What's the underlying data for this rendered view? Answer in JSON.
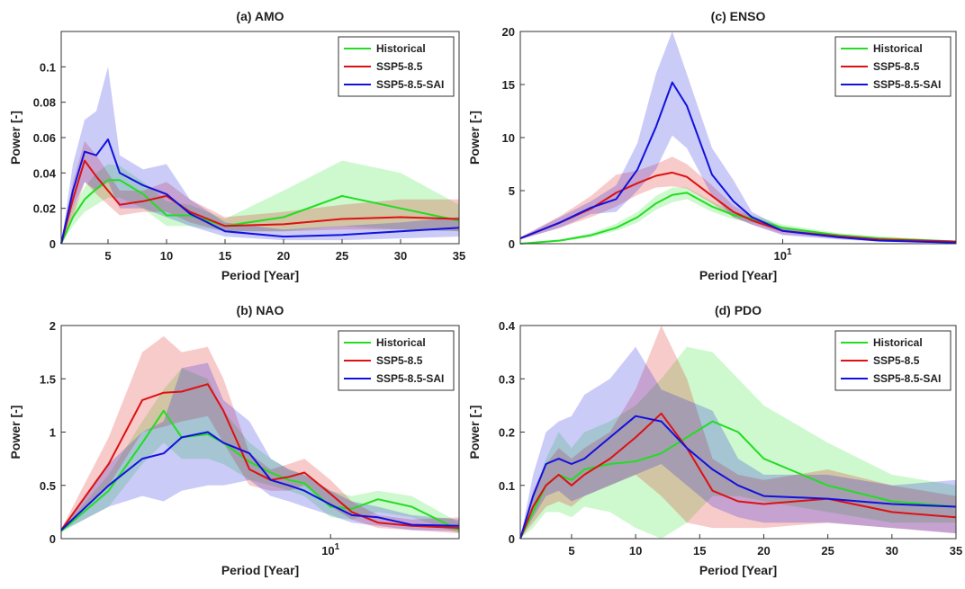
{
  "chart_data": [
    {
      "type": "line",
      "title": "(a) AMO",
      "x_label": "Period [Year]",
      "y_label": "Power [-]",
      "xscale": "linear",
      "xlim": [
        1,
        35
      ],
      "xticks": [
        5,
        10,
        15,
        20,
        25,
        30,
        35
      ],
      "ylim": [
        0,
        0.12
      ],
      "yticks": [
        0,
        0.02,
        0.04,
        0.06,
        0.08,
        0.1
      ],
      "legend": "upper right",
      "x": [
        1,
        2,
        3,
        4,
        5,
        6,
        8,
        10,
        12,
        15,
        20,
        25,
        30,
        35
      ],
      "series": [
        {
          "name": "Historical",
          "color": "#22dd22",
          "values": [
            0,
            0.015,
            0.025,
            0.031,
            0.036,
            0.036,
            0.028,
            0.016,
            0.016,
            0.01,
            0.015,
            0.027,
            0.02,
            0.013
          ],
          "upper": [
            0,
            0.02,
            0.032,
            0.04,
            0.045,
            0.044,
            0.035,
            0.024,
            0.022,
            0.014,
            0.03,
            0.047,
            0.04,
            0.022
          ],
          "lower": [
            0,
            0.01,
            0.018,
            0.022,
            0.026,
            0.026,
            0.02,
            0.01,
            0.01,
            0.007,
            0.007,
            0.01,
            0.008,
            0.007
          ]
        },
        {
          "name": "SSP5-8.5",
          "color": "#dd1111",
          "values": [
            0,
            0.025,
            0.047,
            0.038,
            0.03,
            0.022,
            0.024,
            0.027,
            0.018,
            0.01,
            0.011,
            0.014,
            0.015,
            0.014
          ],
          "upper": [
            0,
            0.035,
            0.058,
            0.05,
            0.04,
            0.03,
            0.03,
            0.035,
            0.025,
            0.015,
            0.018,
            0.022,
            0.025,
            0.025
          ],
          "lower": [
            0,
            0.015,
            0.035,
            0.028,
            0.022,
            0.016,
            0.018,
            0.018,
            0.012,
            0.007,
            0.007,
            0.008,
            0.008,
            0.007
          ]
        },
        {
          "name": "SSP5-8.5-SAI",
          "color": "#1111dd",
          "values": [
            0,
            0.03,
            0.052,
            0.05,
            0.059,
            0.04,
            0.033,
            0.028,
            0.017,
            0.007,
            0.004,
            0.005,
            0.007,
            0.009
          ],
          "upper": [
            0,
            0.045,
            0.07,
            0.075,
            0.1,
            0.05,
            0.042,
            0.045,
            0.025,
            0.012,
            0.008,
            0.01,
            0.012,
            0.015
          ],
          "lower": [
            0,
            0.02,
            0.035,
            0.03,
            0.035,
            0.02,
            0.02,
            0.015,
            0.01,
            0.004,
            0.002,
            0.002,
            0.003,
            0.004
          ]
        }
      ]
    },
    {
      "type": "line",
      "title": "(b) NAO",
      "x_label": "Period [Year]",
      "y_label": "Power [-]",
      "xscale": "log",
      "xlim": [
        1,
        30
      ],
      "xticks": [
        {
          "value": 10,
          "label": "10^1"
        }
      ],
      "ylim": [
        0,
        2
      ],
      "yticks": [
        0,
        0.5,
        1,
        1.5,
        2
      ],
      "legend": "upper right",
      "x": [
        1,
        1.5,
        2,
        2.4,
        2.8,
        3.5,
        4,
        5,
        6,
        7,
        8,
        10,
        12,
        15,
        20,
        30
      ],
      "series": [
        {
          "name": "Historical",
          "color": "#22dd22",
          "values": [
            0.07,
            0.45,
            0.9,
            1.2,
            0.95,
            0.98,
            0.9,
            0.72,
            0.62,
            0.55,
            0.52,
            0.3,
            0.28,
            0.37,
            0.3,
            0.08
          ],
          "upper": [
            0.08,
            0.6,
            1.1,
            1.4,
            1.6,
            1.5,
            1.2,
            0.9,
            0.75,
            0.65,
            0.6,
            0.45,
            0.4,
            0.45,
            0.4,
            0.15
          ],
          "lower": [
            0.06,
            0.3,
            0.7,
            0.9,
            0.75,
            0.75,
            0.7,
            0.55,
            0.5,
            0.45,
            0.4,
            0.2,
            0.18,
            0.25,
            0.2,
            0.05
          ]
        },
        {
          "name": "SSP5-8.5",
          "color": "#dd1111",
          "values": [
            0.08,
            0.7,
            1.3,
            1.37,
            1.38,
            1.45,
            1.2,
            0.65,
            0.55,
            0.58,
            0.62,
            0.42,
            0.25,
            0.15,
            0.12,
            0.1
          ],
          "upper": [
            0.09,
            0.95,
            1.75,
            1.9,
            1.75,
            1.8,
            1.5,
            0.8,
            0.65,
            0.7,
            0.75,
            0.55,
            0.35,
            0.22,
            0.18,
            0.2
          ],
          "lower": [
            0.07,
            0.5,
            1.0,
            1.05,
            1.1,
            1.15,
            0.9,
            0.5,
            0.45,
            0.45,
            0.5,
            0.3,
            0.18,
            0.1,
            0.08,
            0.05
          ]
        },
        {
          "name": "SSP5-8.5-SAI",
          "color": "#1111dd",
          "values": [
            0.08,
            0.5,
            0.75,
            0.8,
            0.95,
            1.0,
            0.9,
            0.8,
            0.55,
            0.5,
            0.45,
            0.32,
            0.22,
            0.2,
            0.13,
            0.12
          ],
          "upper": [
            0.09,
            0.7,
            1.0,
            1.1,
            1.6,
            1.65,
            1.3,
            1.1,
            0.75,
            0.65,
            0.6,
            0.45,
            0.35,
            0.3,
            0.22,
            0.18
          ],
          "lower": [
            0.07,
            0.3,
            0.4,
            0.35,
            0.45,
            0.5,
            0.5,
            0.55,
            0.4,
            0.35,
            0.3,
            0.22,
            0.15,
            0.12,
            0.08,
            0.07
          ]
        }
      ]
    },
    {
      "type": "line",
      "title": "(c) ENSO",
      "x_label": "Period [Year]",
      "y_label": "Power [-]",
      "xscale": "log",
      "xlim": [
        1.5,
        35
      ],
      "xticks": [
        {
          "value": 10,
          "label": "10^1"
        }
      ],
      "ylim": [
        0,
        20
      ],
      "yticks": [
        0,
        5,
        10,
        15,
        20
      ],
      "legend": "upper right",
      "x": [
        1.5,
        2,
        2.5,
        3,
        3.5,
        4,
        4.5,
        5,
        6,
        7,
        8,
        10,
        15,
        20,
        35
      ],
      "series": [
        {
          "name": "Historical",
          "color": "#22dd22",
          "values": [
            0,
            0.3,
            0.8,
            1.5,
            2.5,
            3.8,
            4.6,
            4.8,
            3.5,
            2.7,
            2.4,
            1.5,
            0.8,
            0.5,
            0.2
          ],
          "upper": [
            0,
            0.4,
            1,
            1.9,
            3,
            4.5,
            5.3,
            5.3,
            4,
            3,
            2.7,
            1.8,
            1,
            0.7,
            0.3
          ],
          "lower": [
            0,
            0.2,
            0.6,
            1.2,
            2,
            3.2,
            3.9,
            4.2,
            3,
            2.3,
            2,
            1.2,
            0.6,
            0.3,
            0.1
          ]
        },
        {
          "name": "SSP5-8.5",
          "color": "#dd1111",
          "values": [
            0.5,
            2,
            3.3,
            4.8,
            5.7,
            6.4,
            6.7,
            6.3,
            4.5,
            3,
            2.2,
            1.2,
            0.7,
            0.4,
            0.2
          ],
          "upper": [
            0.6,
            2.6,
            4.5,
            6.5,
            6.9,
            7.5,
            8.2,
            7.5,
            5.5,
            3.6,
            2.6,
            1.5,
            0.9,
            0.6,
            0.3
          ],
          "lower": [
            0.4,
            1.5,
            2.5,
            3.5,
            4.6,
            5.3,
            5.4,
            5.2,
            3.8,
            2.5,
            1.8,
            0.9,
            0.5,
            0.2,
            0.1
          ]
        },
        {
          "name": "SSP5-8.5-SAI",
          "color": "#1111dd",
          "values": [
            0.5,
            2,
            3.4,
            4.2,
            7,
            11,
            15.2,
            13,
            6.5,
            4,
            2.5,
            1.2,
            0.6,
            0.3,
            0.1
          ],
          "upper": [
            0.6,
            2.5,
            4,
            5.5,
            9.5,
            16,
            20,
            16,
            9,
            6,
            3,
            1.5,
            0.8,
            0.4,
            0.2
          ],
          "lower": [
            0.4,
            1.5,
            2.8,
            3,
            5,
            7,
            10.2,
            9,
            4.5,
            2.5,
            1.8,
            0.8,
            0.4,
            0.2,
            0.1
          ]
        }
      ]
    },
    {
      "type": "line",
      "title": "(d) PDO",
      "x_label": "Period [Year]",
      "y_label": "Power [-]",
      "xscale": "linear",
      "xlim": [
        1,
        35
      ],
      "xticks": [
        5,
        10,
        15,
        20,
        25,
        30,
        35
      ],
      "ylim": [
        0,
        0.4
      ],
      "yticks": [
        0,
        0.1,
        0.2,
        0.3,
        0.4
      ],
      "legend": "upper right",
      "x": [
        1,
        2,
        3,
        4,
        5,
        6,
        8,
        10,
        12,
        14,
        16,
        18,
        20,
        25,
        30,
        35
      ],
      "series": [
        {
          "name": "Historical",
          "color": "#22dd22",
          "values": [
            0,
            0.05,
            0.1,
            0.12,
            0.11,
            0.13,
            0.14,
            0.145,
            0.16,
            0.19,
            0.22,
            0.2,
            0.15,
            0.1,
            0.07,
            0.06
          ],
          "upper": [
            0,
            0.08,
            0.15,
            0.2,
            0.17,
            0.2,
            0.22,
            0.25,
            0.3,
            0.36,
            0.35,
            0.3,
            0.25,
            0.18,
            0.12,
            0.1
          ],
          "lower": [
            0,
            0.02,
            0.05,
            0.05,
            0.04,
            0.06,
            0.05,
            0.02,
            0,
            0.03,
            0.08,
            0.08,
            0.07,
            0.05,
            0.03,
            0.03
          ]
        },
        {
          "name": "SSP5-8.5",
          "color": "#dd1111",
          "values": [
            0,
            0.06,
            0.1,
            0.12,
            0.1,
            0.12,
            0.15,
            0.19,
            0.235,
            0.17,
            0.09,
            0.07,
            0.065,
            0.075,
            0.05,
            0.04
          ],
          "upper": [
            0,
            0.09,
            0.14,
            0.17,
            0.15,
            0.17,
            0.2,
            0.28,
            0.4,
            0.3,
            0.15,
            0.12,
            0.11,
            0.13,
            0.1,
            0.08
          ],
          "lower": [
            0,
            0.03,
            0.06,
            0.07,
            0.06,
            0.08,
            0.1,
            0.12,
            0.08,
            0.03,
            0.02,
            0.02,
            0.02,
            0.03,
            0.02,
            0.01
          ]
        },
        {
          "name": "SSP5-8.5-SAI",
          "color": "#1111dd",
          "values": [
            0,
            0.08,
            0.14,
            0.15,
            0.14,
            0.15,
            0.19,
            0.23,
            0.22,
            0.17,
            0.13,
            0.1,
            0.08,
            0.075,
            0.065,
            0.06
          ],
          "upper": [
            0,
            0.12,
            0.2,
            0.22,
            0.23,
            0.27,
            0.3,
            0.36,
            0.28,
            0.26,
            0.24,
            0.15,
            0.12,
            0.12,
            0.1,
            0.11
          ],
          "lower": [
            0,
            0.04,
            0.08,
            0.09,
            0.07,
            0.08,
            0.1,
            0.12,
            0.14,
            0.1,
            0.06,
            0.04,
            0.03,
            0.03,
            0.02,
            0.01
          ]
        }
      ]
    }
  ]
}
